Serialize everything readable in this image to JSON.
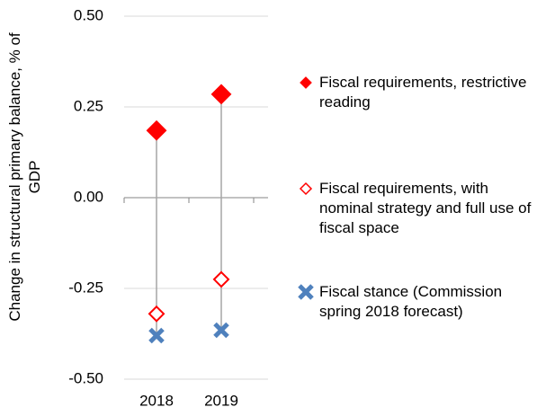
{
  "chart_data": {
    "type": "scatter",
    "y_label": "Change in structural primary balance, % of GDP",
    "categories": [
      "2018",
      "2019"
    ],
    "ylim": [
      -0.5,
      0.5
    ],
    "yticks": [
      {
        "value": 0.5,
        "label": "0.50"
      },
      {
        "value": 0.25,
        "label": "0.25"
      },
      {
        "value": 0,
        "label": "0.00"
      },
      {
        "value": -0.25,
        "label": "-0.25"
      },
      {
        "value": -0.5,
        "label": "-0.50"
      }
    ],
    "grid": true,
    "legend": "right",
    "series": [
      {
        "name": "Fiscal requirements, restrictive reading",
        "color": "#ff0000",
        "marker": "filled-diamond",
        "values": [
          0.185,
          0.285
        ]
      },
      {
        "name": "Fiscal requirements, with nominal strategy and full use of fiscal space",
        "color": "#ff0000",
        "marker": "hollow-diamond",
        "values": [
          -0.32,
          -0.225
        ]
      },
      {
        "name": "Fiscal stance (Commission spring 2018 forecast)",
        "color": "#4f81bd",
        "marker": "cross",
        "values": [
          -0.38,
          -0.365
        ]
      }
    ]
  }
}
